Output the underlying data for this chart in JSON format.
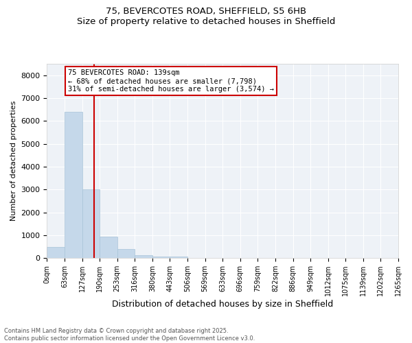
{
  "title_line1": "75, BEVERCOTES ROAD, SHEFFIELD, S5 6HB",
  "title_line2": "Size of property relative to detached houses in Sheffield",
  "xlabel": "Distribution of detached houses by size in Sheffield",
  "ylabel": "Number of detached properties",
  "bar_color": "#c5d8ea",
  "bar_edge_color": "#a8c4d8",
  "background_color": "#eef2f7",
  "bin_labels": [
    "0sqm",
    "63sqm",
    "127sqm",
    "190sqm",
    "253sqm",
    "316sqm",
    "380sqm",
    "443sqm",
    "506sqm",
    "569sqm",
    "633sqm",
    "696sqm",
    "759sqm",
    "822sqm",
    "886sqm",
    "949sqm",
    "1012sqm",
    "1075sqm",
    "1139sqm",
    "1202sqm",
    "1265sqm"
  ],
  "bar_heights": [
    500,
    6400,
    3000,
    950,
    400,
    130,
    60,
    60,
    0,
    0,
    0,
    0,
    0,
    0,
    0,
    0,
    0,
    0,
    0,
    0
  ],
  "ylim": [
    0,
    8500
  ],
  "yticks": [
    0,
    1000,
    2000,
    3000,
    4000,
    5000,
    6000,
    7000,
    8000
  ],
  "vline_x": 2.18,
  "annotation_title": "75 BEVERCOTES ROAD: 139sqm",
  "annotation_line2": "← 68% of detached houses are smaller (7,798)",
  "annotation_line3": "31% of semi-detached houses are larger (3,574) →",
  "annotation_box_color": "#ffffff",
  "annotation_border_color": "#cc0000",
  "vline_color": "#cc0000",
  "footer_line1": "Contains HM Land Registry data © Crown copyright and database right 2025.",
  "footer_line2": "Contains public sector information licensed under the Open Government Licence v3.0."
}
